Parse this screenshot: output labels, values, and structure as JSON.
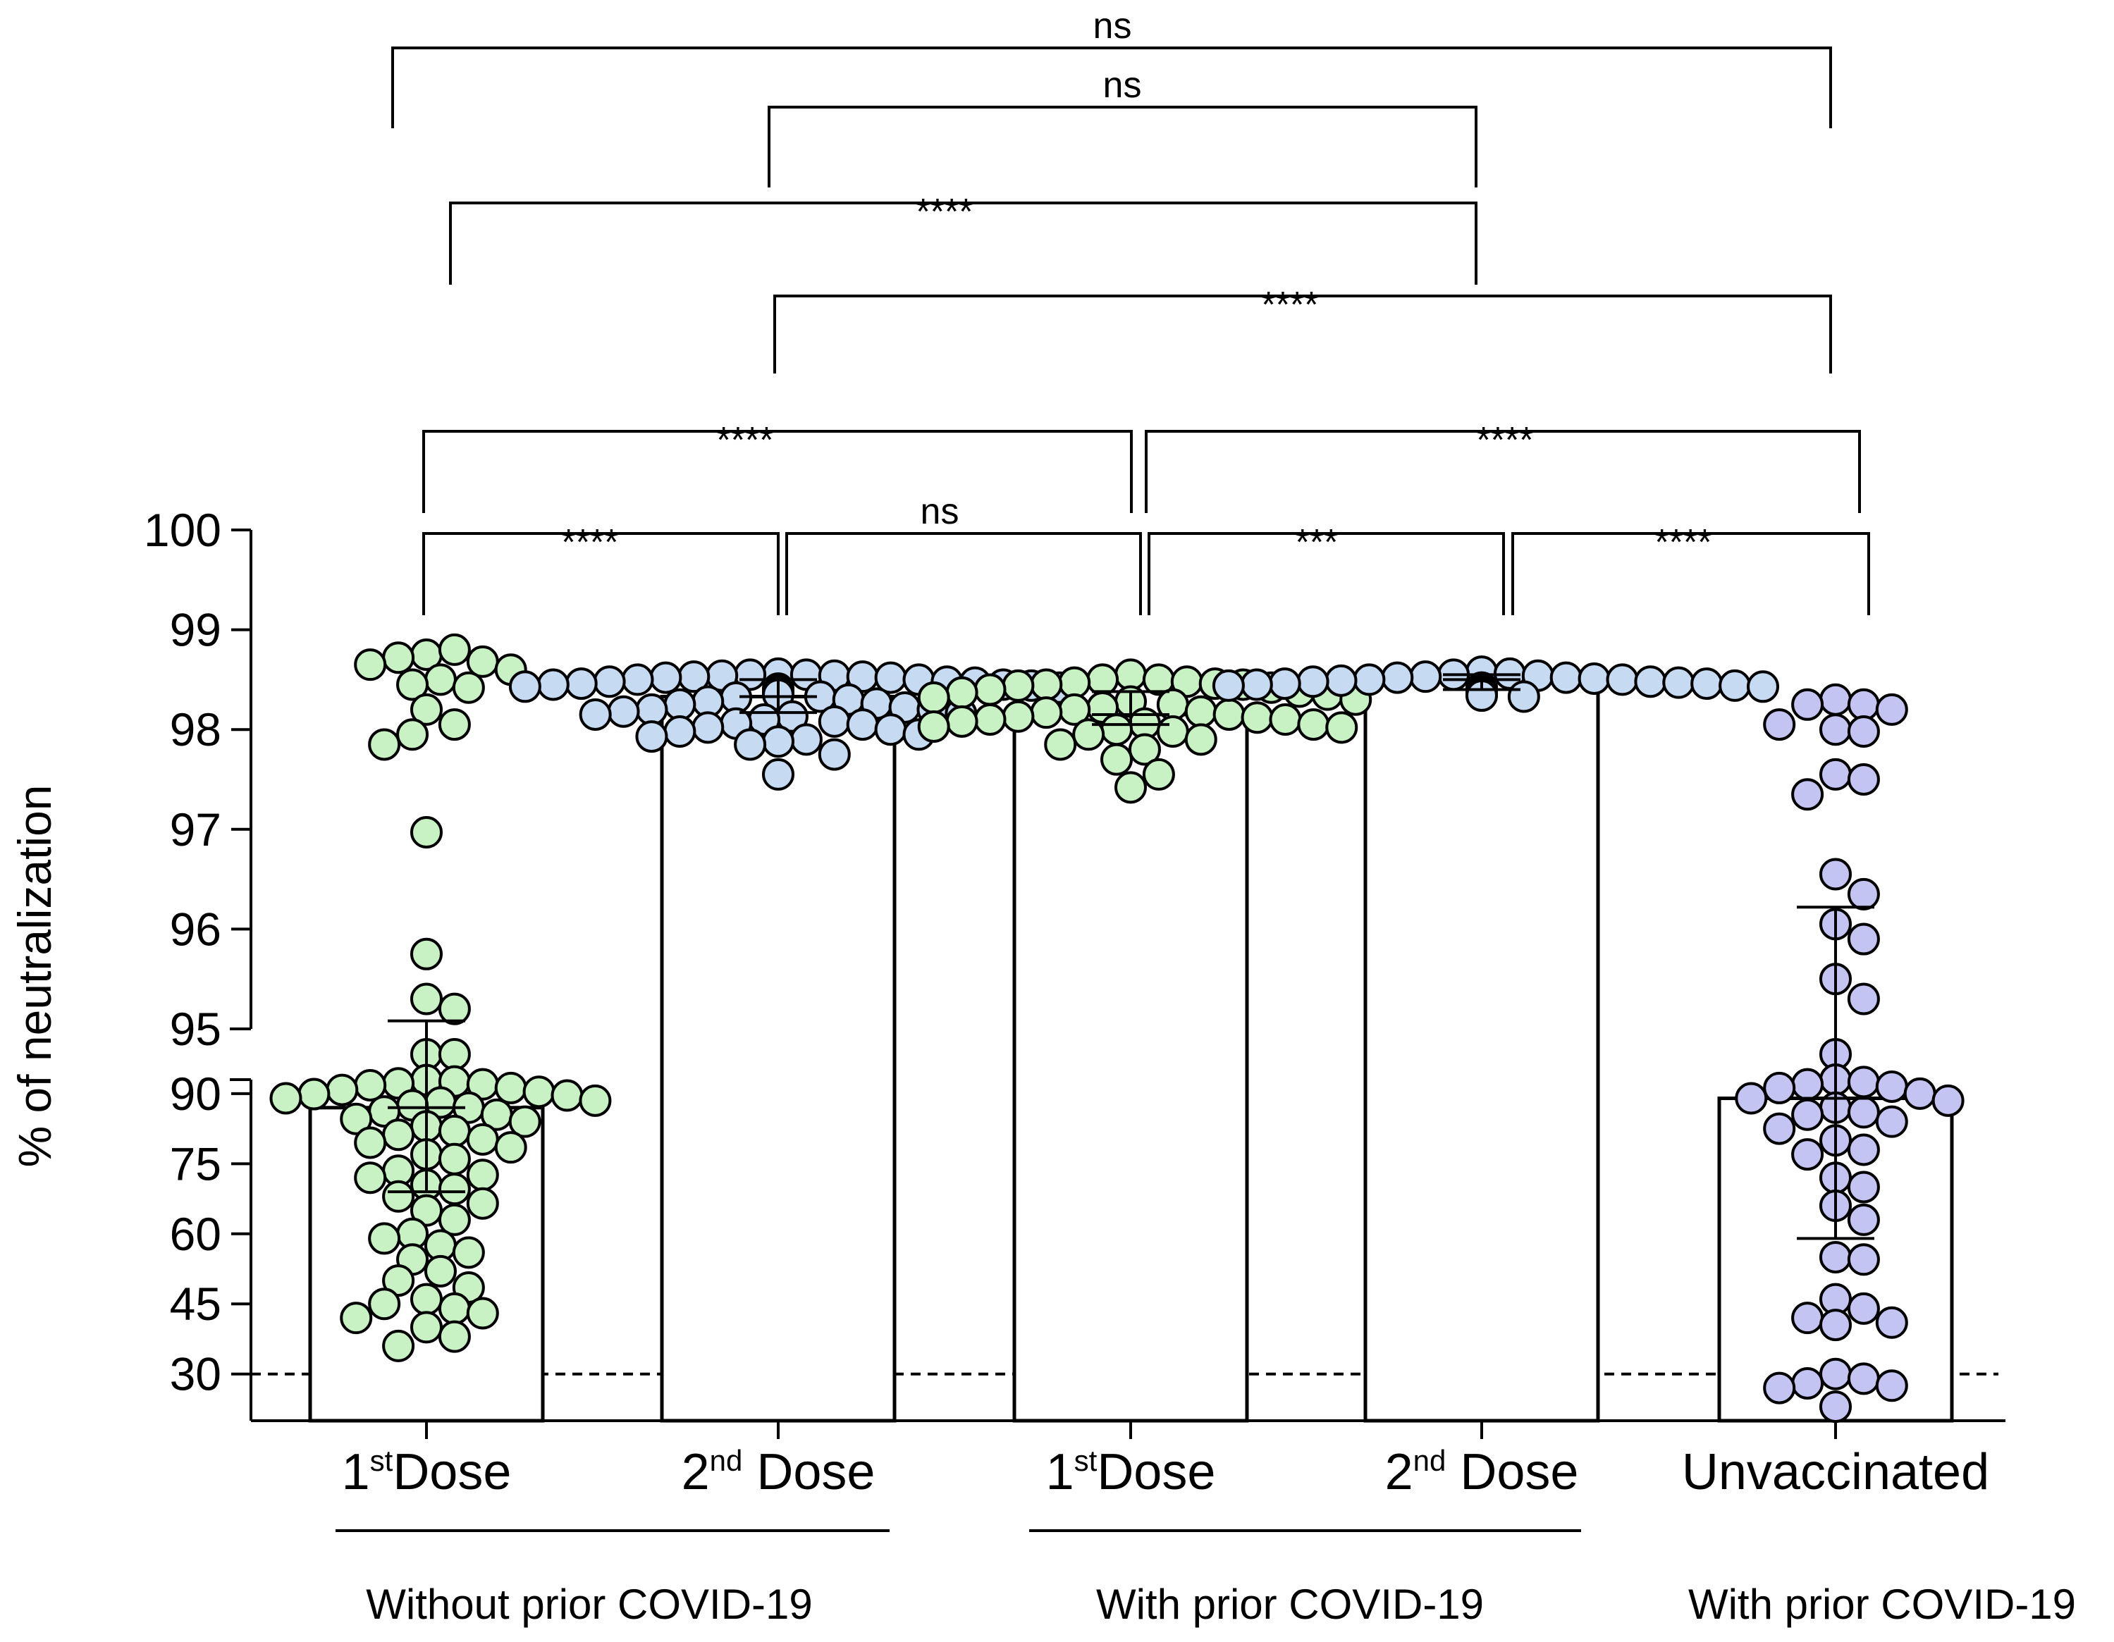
{
  "chart_data": {
    "type": "bar",
    "ylabel": "% of neutralization",
    "y_axis": {
      "segments": [
        {
          "range": [
            20,
            93
          ],
          "ticks": [
            30,
            45,
            60,
            75,
            90
          ]
        },
        {
          "range": [
            95,
            100
          ],
          "ticks": [
            95,
            96,
            97,
            98,
            99,
            100
          ]
        }
      ]
    },
    "tick_labels": [
      "100",
      "99",
      "98",
      "97",
      "96",
      "95",
      "90",
      "75",
      "60",
      "45",
      "30"
    ],
    "reference_line": 30,
    "categories": [
      {
        "base": "1",
        "sup": "st",
        "rest": "Dose",
        "full": "1st Dose",
        "mean": 87,
        "sd_low": 69,
        "sd_high": 95.08,
        "color": "#c8f2c4"
      },
      {
        "base": "2",
        "sup": "nd",
        "rest": " Dose",
        "full": "2nd Dose",
        "mean": 98.33,
        "sd_low": 98.17,
        "sd_high": 98.5,
        "color": "#c6daf2"
      },
      {
        "base": "1",
        "sup": "st",
        "rest": "Dose",
        "full": "1st Dose",
        "mean": 98.15,
        "sd_low": 98.05,
        "sd_high": 98.38,
        "color": "#c8f2c4"
      },
      {
        "base": "2",
        "sup": "nd",
        "rest": " Dose",
        "full": "2nd Dose",
        "mean": 98.5,
        "sd_low": 98.4,
        "sd_high": 98.55,
        "color": "#c6daf2"
      },
      {
        "base": "",
        "sup": "",
        "rest": "Unvaccinated",
        "full": "Unvaccinated",
        "mean": 89,
        "sd_low": 59,
        "sd_high": 96.22,
        "color": "#c4c4f2"
      }
    ],
    "points": [
      [
        98.75,
        98.8,
        98.72,
        98.68,
        98.65,
        98.6,
        98.5,
        98.45,
        98.42,
        98.2,
        98.05,
        97.95,
        97.85,
        96.97,
        95.75,
        95.3,
        95.2,
        93.3,
        93.1,
        92.9,
        92.6,
        92.2,
        92.0,
        91.8,
        91.2,
        90.8,
        90.4,
        89.9,
        89.6,
        89.0,
        88.5,
        88.1,
        87.5,
        87.0,
        86.2,
        85.5,
        84.6,
        84.0,
        83.0,
        82.0,
        81.2,
        80.2,
        79.5,
        78.5,
        77.0,
        76.0,
        73.5,
        72.6,
        72.0,
        70.5,
        69.6,
        68.0,
        66.5,
        65.0,
        63.0,
        60.0,
        59.0,
        57.5,
        56.0,
        54.5,
        52.0,
        50.0,
        48.5,
        46.0,
        45.0,
        44.0,
        43.0,
        42.0,
        40.0,
        38.0,
        36.0
      ],
      [
        98.56,
        98.55,
        98.55,
        98.54,
        98.54,
        98.53,
        98.53,
        98.52,
        98.52,
        98.5,
        98.5,
        98.48,
        98.48,
        98.47,
        98.46,
        98.45,
        98.45,
        98.44,
        98.43,
        98.42,
        98.41,
        98.4,
        98.38,
        98.37,
        98.35,
        98.33,
        98.32,
        98.3,
        98.28,
        98.26,
        98.25,
        98.22,
        98.2,
        98.2,
        98.18,
        98.16,
        98.15,
        98.13,
        98.1,
        98.08,
        98.06,
        98.05,
        98.02,
        98.0,
        97.98,
        97.95,
        97.93,
        97.9,
        97.88,
        97.85,
        97.75,
        97.55
      ],
      [
        98.55,
        98.5,
        98.5,
        98.48,
        98.47,
        98.46,
        98.45,
        98.45,
        98.44,
        98.42,
        98.4,
        98.38,
        98.37,
        98.35,
        98.32,
        98.3,
        98.28,
        98.25,
        98.22,
        98.2,
        98.18,
        98.17,
        98.15,
        98.13,
        98.12,
        98.1,
        98.1,
        98.08,
        98.06,
        98.05,
        98.03,
        98.02,
        98.0,
        97.98,
        97.95,
        97.9,
        97.85,
        97.8,
        97.7,
        97.55,
        97.42
      ],
      [
        98.58,
        98.56,
        98.55,
        98.54,
        98.53,
        98.52,
        98.52,
        98.51,
        98.5,
        98.5,
        98.49,
        98.48,
        98.48,
        98.47,
        98.46,
        98.46,
        98.45,
        98.44,
        98.44,
        98.43,
        98.42,
        98.42,
        98.41,
        98.4,
        98.4,
        98.39,
        98.38,
        98.37,
        98.36,
        98.35,
        98.34,
        98.33
      ],
      [
        98.3,
        98.25,
        98.25,
        98.2,
        98.0,
        97.98,
        98.05,
        97.55,
        97.5,
        97.35,
        96.55,
        96.35,
        96.05,
        95.9,
        95.5,
        95.3,
        93.5,
        93.0,
        92.5,
        92.0,
        91.5,
        91.2,
        90.0,
        89.0,
        88.5,
        87.0,
        86.0,
        85.5,
        84.0,
        82.5,
        80.0,
        78.0,
        77.0,
        72.0,
        70.0,
        66.0,
        63.0,
        55.0,
        54.5,
        46.0,
        44.0,
        42.0,
        41.0,
        40.5,
        30.0,
        29.0,
        28.0,
        27.5,
        27.0,
        23.0
      ]
    ],
    "groups": [
      {
        "label": "Without prior COVID-19",
        "members": [
          0,
          1
        ]
      },
      {
        "label": "With prior COVID-19",
        "members": [
          2,
          3
        ]
      },
      {
        "label": "With prior COVID-19",
        "members": [
          4
        ]
      }
    ],
    "comparisons": [
      {
        "a": 0,
        "b": 4,
        "label": "ns"
      },
      {
        "a": 1,
        "b": 3,
        "label": "ns"
      },
      {
        "a": 0,
        "b": 3,
        "label": "****"
      },
      {
        "a": 1,
        "b": 4,
        "label": "****"
      },
      {
        "a": 0,
        "b": 2,
        "label": "****"
      },
      {
        "a": 2,
        "b": 4,
        "label": "****"
      },
      {
        "a": 0,
        "b": 1,
        "label": "****"
      },
      {
        "a": 1,
        "b": 2,
        "label": "ns"
      },
      {
        "a": 2,
        "b": 3,
        "label": "***"
      },
      {
        "a": 3,
        "b": 4,
        "label": "****"
      }
    ]
  }
}
